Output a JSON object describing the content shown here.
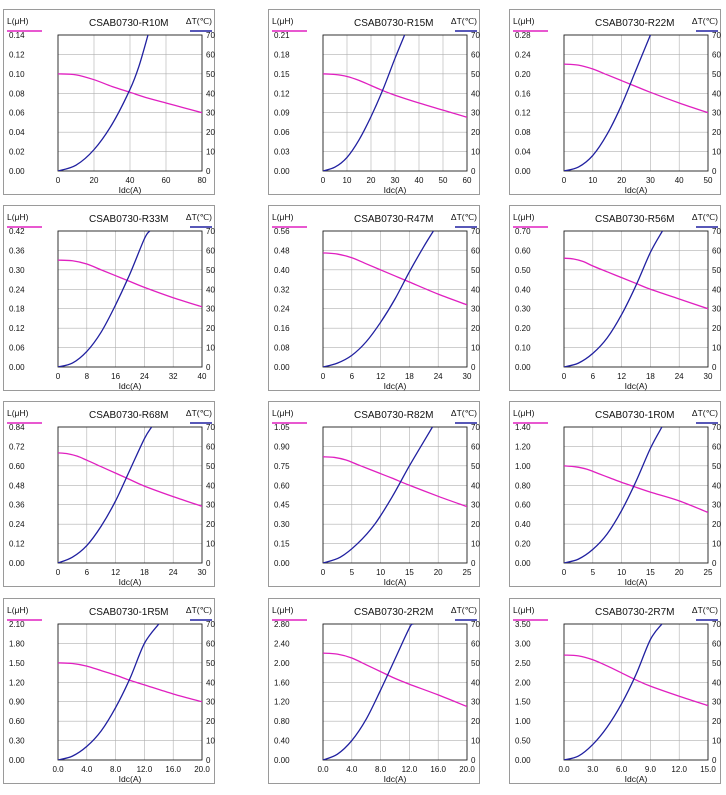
{
  "charts_meta": {
    "left_axis_label": "L(μH)",
    "right_axis_label": "ΔT(℃)",
    "x_axis_label": "Idc(A)",
    "inductance_color": "#e020c0",
    "temperature_color": "#2020a0",
    "grid": true,
    "grid_color": "#b0b0b0"
  },
  "chart_data": [
    {
      "type": "line",
      "title": "CSAB0730-R10M",
      "xlabel": "Idc(A)",
      "ylabel": "L(μH)",
      "y2label": "ΔT(℃)",
      "xlim": [
        0,
        80
      ],
      "x_ticks": [
        "0",
        "20",
        "40",
        "60",
        "80"
      ],
      "ylim": [
        0,
        0.14
      ],
      "y_ticks": [
        "0.00",
        "0.02",
        "0.04",
        "0.06",
        "0.08",
        "0.10",
        "0.12",
        "0.14"
      ],
      "y2lim": [
        0,
        70
      ],
      "y2_ticks": [
        "0",
        "10",
        "20",
        "30",
        "40",
        "50",
        "60",
        "70"
      ],
      "series": [
        {
          "axis": "left",
          "x": [
            0,
            10,
            20,
            30,
            40,
            50,
            60,
            70,
            80
          ],
          "values": [
            0.1,
            0.099,
            0.094,
            0.087,
            0.081,
            0.075,
            0.07,
            0.065,
            0.06
          ]
        },
        {
          "axis": "right",
          "x": [
            0,
            10,
            20,
            30,
            40,
            45,
            50
          ],
          "values": [
            0,
            3,
            11,
            24,
            42,
            54,
            70
          ]
        }
      ]
    },
    {
      "type": "line",
      "title": "CSAB0730-R15M",
      "xlabel": "Idc(A)",
      "ylabel": "L(μH)",
      "y2label": "ΔT(℃)",
      "xlim": [
        0,
        60
      ],
      "x_ticks": [
        "0",
        "10",
        "20",
        "30",
        "40",
        "50",
        "60"
      ],
      "ylim": [
        0,
        0.21
      ],
      "y_ticks": [
        "0.00",
        "0.03",
        "0.06",
        "0.09",
        "0.12",
        "0.15",
        "0.18",
        "0.21"
      ],
      "y2lim": [
        0,
        70
      ],
      "y2_ticks": [
        "0",
        "10",
        "20",
        "30",
        "40",
        "50",
        "60",
        "70"
      ],
      "series": [
        {
          "axis": "left",
          "x": [
            0,
            5,
            10,
            15,
            20,
            25,
            30,
            40,
            50,
            60
          ],
          "values": [
            0.15,
            0.149,
            0.146,
            0.14,
            0.132,
            0.124,
            0.117,
            0.105,
            0.094,
            0.083
          ]
        },
        {
          "axis": "right",
          "x": [
            0,
            5,
            10,
            15,
            20,
            25,
            30,
            34
          ],
          "values": [
            0,
            2,
            7,
            16,
            28,
            42,
            58,
            70
          ]
        }
      ]
    },
    {
      "type": "line",
      "title": "CSAB0730-R22M",
      "xlabel": "Idc(A)",
      "ylabel": "L(μH)",
      "y2label": "ΔT(℃)",
      "xlim": [
        0,
        50
      ],
      "x_ticks": [
        "0",
        "10",
        "20",
        "30",
        "40",
        "50"
      ],
      "ylim": [
        0,
        0.28
      ],
      "y_ticks": [
        "0.00",
        "0.04",
        "0.08",
        "0.12",
        "0.16",
        "0.20",
        "0.24",
        "0.28"
      ],
      "y2lim": [
        0,
        70
      ],
      "y2_ticks": [
        "0",
        "10",
        "20",
        "30",
        "40",
        "50",
        "60",
        "70"
      ],
      "series": [
        {
          "axis": "left",
          "x": [
            0,
            5,
            10,
            15,
            20,
            25,
            30,
            40,
            50
          ],
          "values": [
            0.22,
            0.218,
            0.21,
            0.198,
            0.186,
            0.174,
            0.162,
            0.14,
            0.12
          ]
        },
        {
          "axis": "right",
          "x": [
            0,
            5,
            10,
            15,
            20,
            25,
            30
          ],
          "values": [
            0,
            2,
            8,
            19,
            34,
            52,
            70
          ]
        }
      ]
    },
    {
      "type": "line",
      "title": "CSAB0730-R33M",
      "xlabel": "Idc(A)",
      "ylabel": "L(μH)",
      "y2label": "ΔT(℃)",
      "xlim": [
        0,
        40
      ],
      "x_ticks": [
        "0",
        "8",
        "16",
        "24",
        "32",
        "40"
      ],
      "ylim": [
        0,
        0.42
      ],
      "y_ticks": [
        "0.00",
        "0.06",
        "0.12",
        "0.18",
        "0.24",
        "0.30",
        "0.36",
        "0.42"
      ],
      "y2lim": [
        0,
        70
      ],
      "y2_ticks": [
        "0",
        "10",
        "20",
        "30",
        "40",
        "50",
        "60",
        "70"
      ],
      "series": [
        {
          "axis": "left",
          "x": [
            0,
            4,
            8,
            12,
            16,
            20,
            24,
            32,
            40
          ],
          "values": [
            0.33,
            0.328,
            0.318,
            0.3,
            0.282,
            0.264,
            0.246,
            0.214,
            0.186
          ]
        },
        {
          "axis": "right",
          "x": [
            0,
            4,
            8,
            12,
            16,
            20,
            24,
            25.5
          ],
          "values": [
            0,
            2,
            8,
            18,
            32,
            48,
            66,
            70
          ]
        }
      ]
    },
    {
      "type": "line",
      "title": "CSAB0730-R47M",
      "xlabel": "Idc(A)",
      "ylabel": "L(μH)",
      "y2label": "ΔT(℃)",
      "xlim": [
        0,
        30
      ],
      "x_ticks": [
        "0",
        "6",
        "12",
        "18",
        "24",
        "30"
      ],
      "ylim": [
        0,
        0.56
      ],
      "y_ticks": [
        "0.00",
        "0.08",
        "0.16",
        "0.24",
        "0.32",
        "0.40",
        "0.48",
        "0.56"
      ],
      "y2lim": [
        0,
        70
      ],
      "y2_ticks": [
        "0",
        "10",
        "20",
        "30",
        "40",
        "50",
        "60",
        "70"
      ],
      "series": [
        {
          "axis": "left",
          "x": [
            0,
            3,
            6,
            9,
            12,
            15,
            18,
            24,
            30
          ],
          "values": [
            0.47,
            0.465,
            0.45,
            0.425,
            0.4,
            0.375,
            0.35,
            0.3,
            0.256
          ]
        },
        {
          "axis": "right",
          "x": [
            0,
            3,
            6,
            9,
            12,
            15,
            18,
            21,
            23
          ],
          "values": [
            0,
            2,
            6,
            13,
            23,
            35,
            49,
            62,
            70
          ]
        }
      ]
    },
    {
      "type": "line",
      "title": "CSAB0730-R56M",
      "xlabel": "Idc(A)",
      "ylabel": "L(μH)",
      "y2label": "ΔT(℃)",
      "xlim": [
        0,
        30
      ],
      "x_ticks": [
        "0",
        "6",
        "12",
        "18",
        "24",
        "30"
      ],
      "ylim": [
        0,
        0.7
      ],
      "y_ticks": [
        "0.00",
        "0.10",
        "0.20",
        "0.30",
        "0.40",
        "0.50",
        "0.60",
        "0.70"
      ],
      "y2lim": [
        0,
        70
      ],
      "y2_ticks": [
        "0",
        "10",
        "20",
        "30",
        "40",
        "50",
        "60",
        "70"
      ],
      "series": [
        {
          "axis": "left",
          "x": [
            0,
            2,
            4,
            6,
            9,
            12,
            15,
            18,
            24,
            30
          ],
          "values": [
            0.56,
            0.556,
            0.543,
            0.52,
            0.49,
            0.46,
            0.43,
            0.4,
            0.35,
            0.3
          ]
        },
        {
          "axis": "right",
          "x": [
            0,
            3,
            6,
            9,
            12,
            15,
            18,
            20.5
          ],
          "values": [
            0,
            2,
            7,
            15,
            27,
            42,
            59,
            70
          ]
        }
      ]
    },
    {
      "type": "line",
      "title": "CSAB0730-R68M",
      "xlabel": "Idc(A)",
      "ylabel": "L(μH)",
      "y2label": "ΔT(℃)",
      "xlim": [
        0,
        30
      ],
      "x_ticks": [
        "0",
        "6",
        "12",
        "18",
        "24",
        "30"
      ],
      "ylim": [
        0,
        0.84
      ],
      "y_ticks": [
        "0.00",
        "0.12",
        "0.24",
        "0.36",
        "0.48",
        "0.60",
        "0.72",
        "0.84"
      ],
      "y2lim": [
        0,
        70
      ],
      "y2_ticks": [
        "0",
        "10",
        "20",
        "30",
        "40",
        "50",
        "60",
        "70"
      ],
      "series": [
        {
          "axis": "left",
          "x": [
            0,
            2,
            4,
            6,
            9,
            12,
            15,
            18,
            24,
            30
          ],
          "values": [
            0.68,
            0.675,
            0.66,
            0.635,
            0.595,
            0.555,
            0.515,
            0.475,
            0.41,
            0.35
          ]
        },
        {
          "axis": "right",
          "x": [
            0,
            3,
            6,
            9,
            12,
            15,
            18,
            19.5
          ],
          "values": [
            0,
            3,
            9,
            19,
            32,
            48,
            64,
            70
          ]
        }
      ]
    },
    {
      "type": "line",
      "title": "CSAB0730-R82M",
      "xlabel": "Idc(A)",
      "ylabel": "L(μH)",
      "y2label": "ΔT(℃)",
      "xlim": [
        0,
        25
      ],
      "x_ticks": [
        "0",
        "5",
        "10",
        "15",
        "20",
        "25"
      ],
      "ylim": [
        0,
        1.05
      ],
      "y_ticks": [
        "0.00",
        "0.15",
        "0.30",
        "0.45",
        "0.60",
        "0.75",
        "0.90",
        "1.05"
      ],
      "y2lim": [
        0,
        70
      ],
      "y2_ticks": [
        "0",
        "10",
        "20",
        "30",
        "40",
        "50",
        "60",
        "70"
      ],
      "series": [
        {
          "axis": "left",
          "x": [
            0,
            2,
            4,
            6,
            8,
            10,
            12,
            15,
            20,
            25
          ],
          "values": [
            0.82,
            0.815,
            0.795,
            0.76,
            0.725,
            0.69,
            0.655,
            0.6,
            0.515,
            0.435
          ]
        },
        {
          "axis": "right",
          "x": [
            0,
            3,
            6,
            9,
            12,
            15,
            18,
            19
          ],
          "values": [
            0,
            3,
            10,
            20,
            34,
            50,
            65,
            70
          ]
        }
      ]
    },
    {
      "type": "line",
      "title": "CSAB0730-1R0M",
      "xlabel": "Idc(A)",
      "ylabel": "L(μH)",
      "y2label": "ΔT(℃)",
      "xlim": [
        0,
        25
      ],
      "x_ticks": [
        "0",
        "5",
        "10",
        "15",
        "20",
        "25"
      ],
      "ylim": [
        0,
        1.4
      ],
      "y_ticks": [
        "0.00",
        "0.20",
        "0.40",
        "0.60",
        "0.80",
        "1.00",
        "1.20",
        "1.40"
      ],
      "y2lim": [
        0,
        70
      ],
      "y2_ticks": [
        "0",
        "10",
        "20",
        "30",
        "40",
        "50",
        "60",
        "70"
      ],
      "series": [
        {
          "axis": "left",
          "x": [
            0,
            2,
            4,
            6,
            8,
            10,
            12,
            15,
            20,
            25
          ],
          "values": [
            1.0,
            0.99,
            0.965,
            0.92,
            0.875,
            0.83,
            0.79,
            0.73,
            0.64,
            0.52
          ]
        },
        {
          "axis": "right",
          "x": [
            0,
            2.5,
            5,
            7.5,
            10,
            12.5,
            15,
            17
          ],
          "values": [
            0,
            2,
            7,
            15,
            27,
            42,
            59,
            70
          ]
        }
      ]
    },
    {
      "type": "line",
      "title": "CSAB0730-1R5M",
      "xlabel": "Idc(A)",
      "ylabel": "L(μH)",
      "y2label": "ΔT(℃)",
      "xlim": [
        0,
        20
      ],
      "x_ticks": [
        "0.0",
        "4.0",
        "8.0",
        "12.0",
        "16.0",
        "20.0"
      ],
      "ylim": [
        0,
        2.1
      ],
      "y_ticks": [
        "0.00",
        "0.30",
        "0.60",
        "0.90",
        "1.20",
        "1.50",
        "1.80",
        "2.10"
      ],
      "y2lim": [
        0,
        70
      ],
      "y2_ticks": [
        "0",
        "10",
        "20",
        "30",
        "40",
        "50",
        "60",
        "70"
      ],
      "series": [
        {
          "axis": "left",
          "x": [
            0,
            2,
            4,
            6,
            8,
            10,
            12,
            16,
            20
          ],
          "values": [
            1.5,
            1.49,
            1.45,
            1.38,
            1.31,
            1.23,
            1.16,
            1.02,
            0.9
          ]
        },
        {
          "axis": "right",
          "x": [
            0,
            2,
            4,
            6,
            8,
            10,
            12,
            14
          ],
          "values": [
            0,
            2,
            7,
            15,
            27,
            42,
            60,
            70
          ]
        }
      ]
    },
    {
      "type": "line",
      "title": "CSAB0730-2R2M",
      "xlabel": "Idc(A)",
      "ylabel": "L(μH)",
      "y2label": "ΔT(℃)",
      "xlim": [
        0,
        20
      ],
      "x_ticks": [
        "0.0",
        "4.0",
        "8.0",
        "12.0",
        "16.0",
        "20.0"
      ],
      "ylim": [
        0,
        2.8
      ],
      "y_ticks": [
        "0.00",
        "0.40",
        "0.80",
        "1.20",
        "1.60",
        "2.00",
        "2.40",
        "2.80"
      ],
      "y2lim": [
        0,
        70
      ],
      "y2_ticks": [
        "0",
        "10",
        "20",
        "30",
        "40",
        "50",
        "60",
        "70"
      ],
      "series": [
        {
          "axis": "left",
          "x": [
            0,
            2,
            4,
            6,
            8,
            10,
            12,
            16,
            20
          ],
          "values": [
            2.2,
            2.18,
            2.1,
            1.96,
            1.82,
            1.68,
            1.56,
            1.34,
            1.1
          ]
        },
        {
          "axis": "right",
          "x": [
            0,
            2,
            4,
            6,
            8,
            10,
            12,
            12.5
          ],
          "values": [
            0,
            3,
            10,
            21,
            36,
            52,
            68,
            70
          ]
        }
      ]
    },
    {
      "type": "line",
      "title": "CSAB0730-2R7M",
      "xlabel": "Idc(A)",
      "ylabel": "L(μH)",
      "y2label": "ΔT(℃)",
      "xlim": [
        0,
        15
      ],
      "x_ticks": [
        "0.0",
        "3.0",
        "6.0",
        "9.0",
        "12.0",
        "15.0"
      ],
      "ylim": [
        0,
        3.5
      ],
      "y_ticks": [
        "0.00",
        "0.50",
        "1.00",
        "1.50",
        "2.00",
        "2.50",
        "3.00",
        "3.50"
      ],
      "y2lim": [
        0,
        70
      ],
      "y2_ticks": [
        "0",
        "10",
        "20",
        "30",
        "40",
        "50",
        "60",
        "70"
      ],
      "series": [
        {
          "axis": "left",
          "x": [
            0,
            1.5,
            3,
            4.5,
            6,
            7.5,
            9,
            12,
            15
          ],
          "values": [
            2.7,
            2.68,
            2.58,
            2.42,
            2.24,
            2.06,
            1.9,
            1.64,
            1.4
          ]
        },
        {
          "axis": "right",
          "x": [
            0,
            1.5,
            3,
            4.5,
            6,
            7.5,
            9,
            10.2
          ],
          "values": [
            0,
            2,
            8,
            17,
            29,
            44,
            62,
            70
          ]
        }
      ]
    }
  ]
}
